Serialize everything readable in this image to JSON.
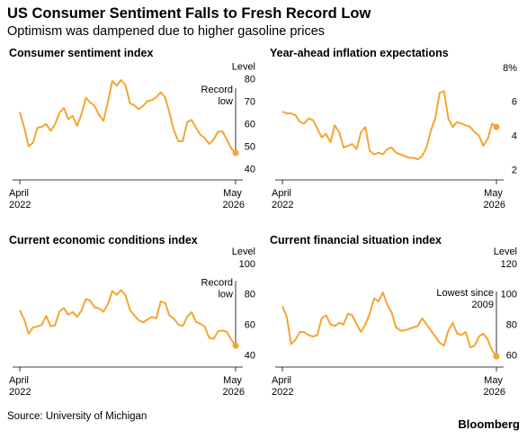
{
  "header": {
    "title": "US Consumer Sentiment Falls to Fresh Record Low",
    "subtitle": "Optimism was dampened due to higher gasoline prices"
  },
  "source": "Source: University of Michigan",
  "brand": "Bloomberg",
  "chart_data": [
    {
      "type": "line",
      "title": "Consumer sentiment index",
      "y_label": "Level",
      "annotation_lines": [
        "Record",
        "low"
      ],
      "color": "#f5a531",
      "categories": [
        "April 2022",
        null,
        null,
        null,
        null,
        null,
        null,
        null,
        null,
        null,
        null,
        null,
        null,
        null,
        null,
        null,
        null,
        null,
        null,
        null,
        null,
        null,
        null,
        null,
        null,
        null,
        null,
        null,
        null,
        null,
        null,
        null,
        null,
        null,
        null,
        null,
        null,
        null,
        null,
        null,
        null,
        null,
        null,
        null,
        null,
        null,
        null,
        null,
        null,
        "May 2026"
      ],
      "values": [
        65.2,
        58.4,
        50.0,
        51.5,
        58.2,
        58.6,
        59.9,
        56.8,
        59.7,
        64.9,
        67.0,
        62.0,
        63.5,
        59.0,
        64.2,
        71.5,
        69.4,
        67.9,
        63.8,
        61.3,
        69.7,
        79.0,
        76.9,
        79.4,
        77.2,
        69.1,
        68.2,
        66.4,
        67.9,
        70.1,
        70.5,
        71.8,
        74.0,
        71.7,
        64.7,
        57.0,
        52.2,
        52.2,
        60.7,
        61.7,
        58.2,
        55.1,
        53.6,
        51.0,
        52.9,
        56.4,
        56.6,
        53.0,
        49.0,
        47.0
      ],
      "ylim": [
        35,
        85
      ],
      "yticks": [
        40,
        50,
        60,
        70,
        80
      ]
    },
    {
      "type": "line",
      "title": "Year-ahead inflation expectations",
      "color": "#f5a531",
      "categories": [
        "April 2022",
        null,
        null,
        null,
        null,
        null,
        null,
        null,
        null,
        null,
        null,
        null,
        null,
        null,
        null,
        null,
        null,
        null,
        null,
        null,
        null,
        null,
        null,
        null,
        null,
        null,
        null,
        null,
        null,
        null,
        null,
        null,
        null,
        null,
        null,
        null,
        null,
        null,
        null,
        null,
        null,
        null,
        null,
        null,
        null,
        null,
        null,
        null,
        null,
        "May 2026"
      ],
      "values": [
        5.4,
        5.3,
        5.3,
        5.2,
        4.8,
        4.7,
        5.0,
        4.9,
        4.4,
        3.9,
        4.1,
        3.6,
        4.6,
        4.2,
        3.3,
        3.4,
        3.5,
        3.2,
        4.2,
        4.5,
        3.1,
        2.9,
        3.0,
        2.9,
        3.2,
        3.3,
        3.0,
        2.9,
        2.8,
        2.7,
        2.7,
        2.6,
        2.8,
        3.3,
        4.3,
        5.0,
        6.5,
        6.6,
        5.0,
        4.5,
        4.8,
        4.7,
        4.6,
        4.5,
        4.2,
        4.0,
        3.4,
        3.8,
        4.7,
        4.5
      ],
      "ylim": [
        1.4,
        8.2
      ],
      "yticks": [
        2,
        4,
        6,
        {
          "value": 8,
          "label": "8%"
        }
      ]
    },
    {
      "type": "line",
      "title": "Current economic conditions index",
      "y_label": "Level",
      "annotation_lines": [
        "Record",
        "low"
      ],
      "color": "#f5a531",
      "categories": [
        "April 2022",
        null,
        null,
        null,
        null,
        null,
        null,
        null,
        null,
        null,
        null,
        null,
        null,
        null,
        null,
        null,
        null,
        null,
        null,
        null,
        null,
        null,
        null,
        null,
        null,
        null,
        null,
        null,
        null,
        null,
        null,
        null,
        null,
        null,
        null,
        null,
        null,
        null,
        null,
        null,
        null,
        null,
        null,
        null,
        null,
        null,
        null,
        null,
        null,
        "May 2026"
      ],
      "values": [
        69.4,
        63.3,
        53.8,
        58.1,
        58.6,
        59.7,
        65.6,
        58.8,
        59.4,
        68.4,
        70.7,
        66.3,
        68.2,
        64.9,
        69.0,
        76.6,
        75.5,
        71.1,
        70.6,
        68.3,
        73.3,
        81.9,
        79.4,
        82.5,
        79.0,
        69.6,
        65.9,
        62.7,
        61.3,
        63.3,
        64.9,
        63.9,
        75.1,
        74.0,
        65.7,
        63.8,
        59.8,
        58.9,
        64.8,
        68.0,
        61.7,
        60.4,
        58.6,
        51.1,
        50.4,
        55.4,
        56.0,
        55.0,
        50.0,
        46.0
      ],
      "ylim": [
        32,
        107
      ],
      "yticks": [
        40,
        60,
        80,
        100
      ]
    },
    {
      "type": "line",
      "title": "Current financial situation index",
      "y_label": "Level",
      "annotation_lines": [
        "Lowest since",
        "2009"
      ],
      "color": "#f5a531",
      "categories": [
        "April 2022",
        null,
        null,
        null,
        null,
        null,
        null,
        null,
        null,
        null,
        null,
        null,
        null,
        null,
        null,
        null,
        null,
        null,
        null,
        null,
        null,
        null,
        null,
        null,
        null,
        null,
        null,
        null,
        null,
        null,
        null,
        null,
        null,
        null,
        null,
        null,
        null,
        null,
        null,
        null,
        null,
        null,
        null,
        null,
        null,
        null,
        null,
        null,
        null,
        "May 2026"
      ],
      "values": [
        92,
        85,
        67,
        70,
        75,
        75,
        73,
        72,
        73,
        84,
        86,
        80,
        79,
        81,
        80,
        87,
        86,
        80,
        75,
        80,
        87,
        97,
        95,
        101,
        93,
        88,
        78,
        76,
        76,
        77,
        78,
        79,
        84,
        80,
        76,
        72,
        68,
        66,
        76,
        81,
        74,
        73,
        75,
        65,
        66,
        72,
        74,
        70,
        63,
        59
      ],
      "ylim": [
        52,
        127
      ],
      "yticks": [
        60,
        80,
        100,
        120
      ]
    }
  ]
}
